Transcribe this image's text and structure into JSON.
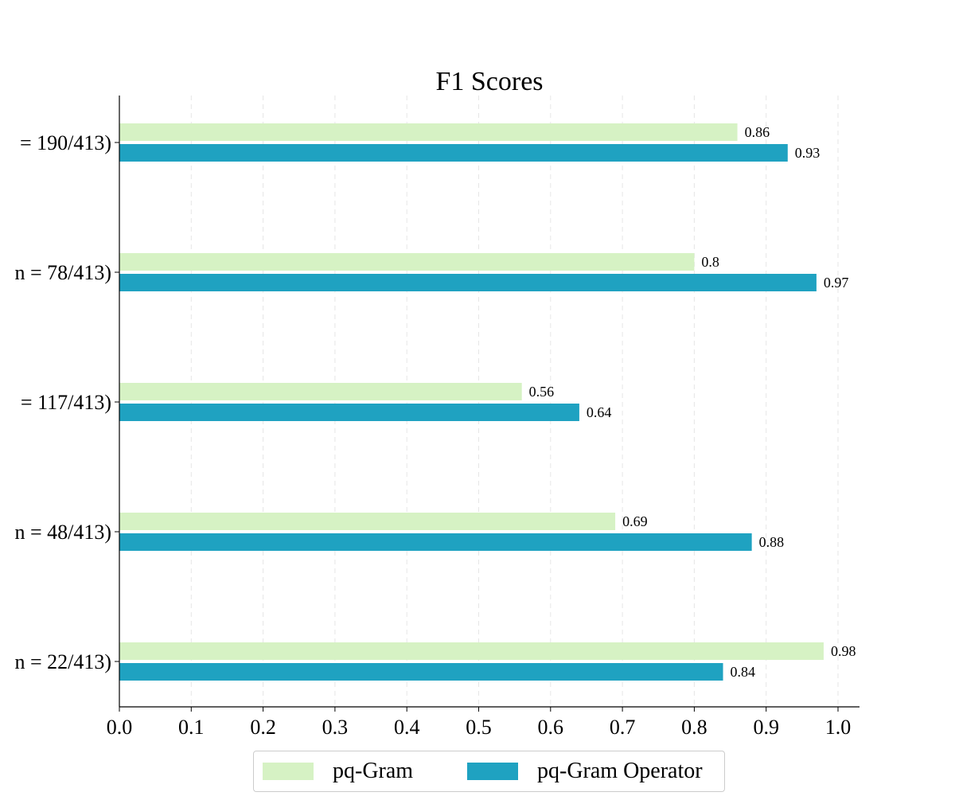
{
  "chart_data": {
    "type": "bar",
    "orientation": "horizontal",
    "title": "F1 Scores",
    "xlabel": "",
    "ylabel": "",
    "xlim": [
      0.0,
      1.03
    ],
    "xticks": [
      "0.0",
      "0.1",
      "0.2",
      "0.3",
      "0.4",
      "0.5",
      "0.6",
      "0.7",
      "0.8",
      "0.9",
      "1.0"
    ],
    "grid": "vertical dashed",
    "legend_position": "bottom-center",
    "categories": [
      "= 190/413)",
      "n = 78/413)",
      "= 117/413)",
      "n = 48/413)",
      "n = 22/413)"
    ],
    "series": [
      {
        "name": "pq-Gram",
        "color": "#d6f2c4",
        "values": [
          0.86,
          0.8,
          0.56,
          0.69,
          0.98
        ],
        "labels": [
          "0.86",
          "0.8",
          "0.56",
          "0.69",
          "0.98"
        ]
      },
      {
        "name": "pq-Gram Operator",
        "color": "#1fa2c1",
        "values": [
          0.93,
          0.97,
          0.64,
          0.88,
          0.84
        ],
        "labels": [
          "0.93",
          "0.97",
          "0.64",
          "0.88",
          "0.84"
        ]
      }
    ]
  }
}
